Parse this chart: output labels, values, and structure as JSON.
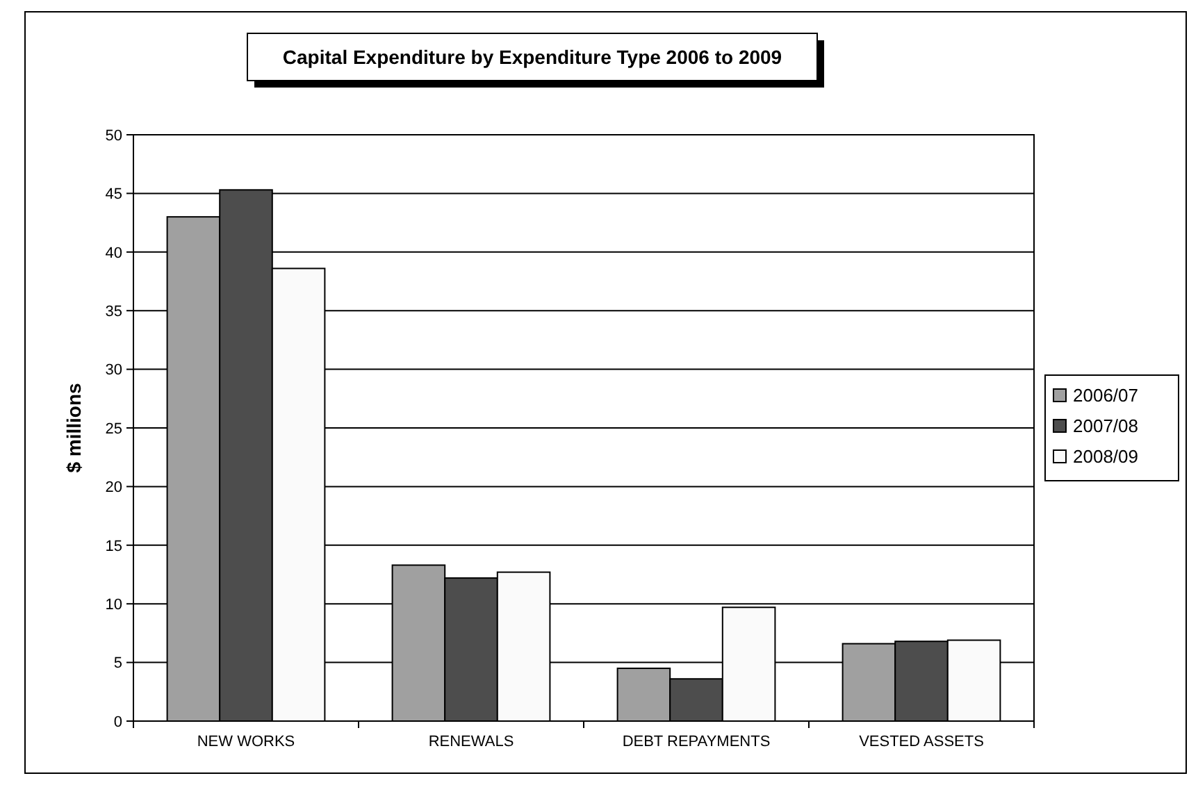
{
  "chart_data": {
    "type": "bar",
    "title": "Capital Expenditure by Expenditure Type 2006 to 2009",
    "ylabel": "$ millions",
    "categories": [
      "NEW WORKS",
      "RENEWALS",
      "DEBT REPAYMENTS",
      "VESTED ASSETS"
    ],
    "series": [
      {
        "name": "2006/07",
        "color": "#a0a0a0",
        "values": [
          43.0,
          13.3,
          4.5,
          6.6
        ]
      },
      {
        "name": "2007/08",
        "color": "#4d4d4d",
        "values": [
          45.3,
          12.2,
          3.6,
          6.8
        ]
      },
      {
        "name": "2008/09",
        "color": "#fafafa",
        "values": [
          38.6,
          12.7,
          9.7,
          6.9
        ]
      }
    ],
    "ylim": [
      0,
      50
    ],
    "yticks": [
      0,
      5,
      10,
      15,
      20,
      25,
      30,
      35,
      40,
      45,
      50
    ],
    "grid": "y",
    "legend": "right"
  }
}
